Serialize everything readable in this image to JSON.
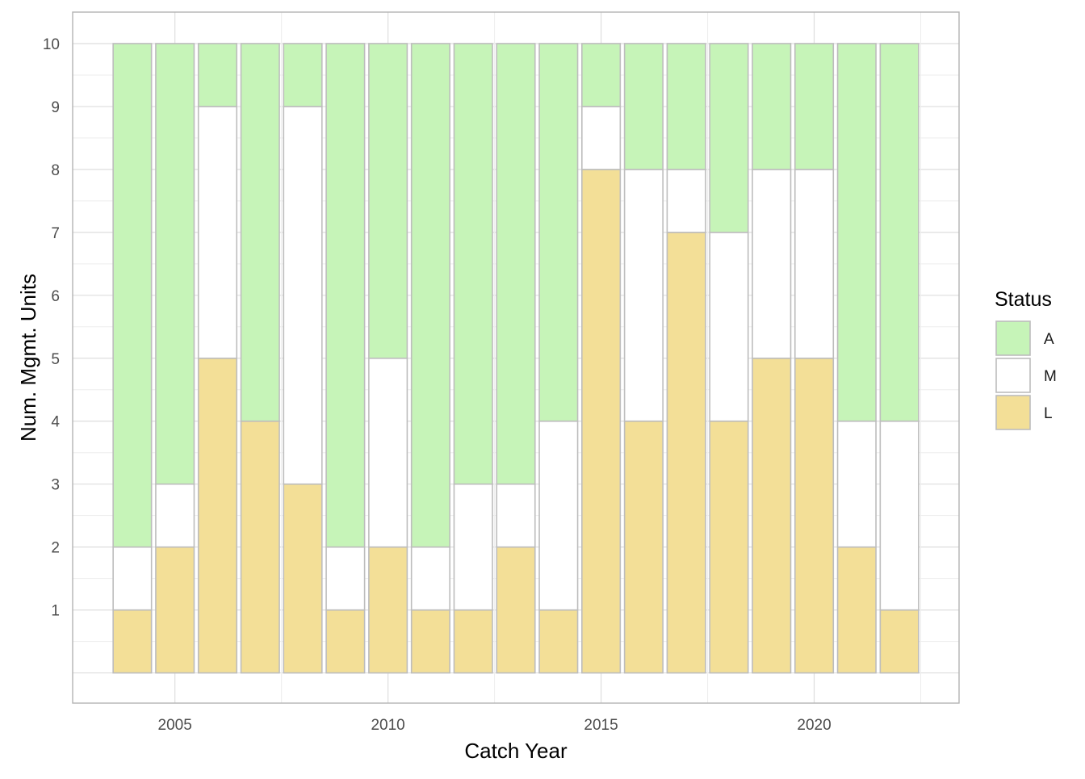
{
  "chart_data": {
    "type": "bar",
    "stacked": true,
    "xlabel": "Catch Year",
    "ylabel": "Num. Mgmt. Units",
    "categories": [
      2004,
      2005,
      2006,
      2007,
      2008,
      2009,
      2010,
      2011,
      2012,
      2013,
      2014,
      2015,
      2016,
      2017,
      2018,
      2019,
      2020,
      2021,
      2022
    ],
    "series": [
      {
        "name": "L",
        "color": "#f3df97",
        "values": [
          1,
          2,
          5,
          4,
          3,
          1,
          2,
          1,
          1,
          2,
          1,
          8,
          4,
          7,
          4,
          5,
          5,
          2,
          1
        ]
      },
      {
        "name": "M",
        "color": "#ffffff",
        "values": [
          1,
          1,
          4,
          0,
          6,
          1,
          3,
          1,
          2,
          1,
          3,
          1,
          4,
          1,
          3,
          3,
          3,
          2,
          3
        ]
      },
      {
        "name": "A",
        "color": "#c6f4b8",
        "values": [
          8,
          7,
          1,
          6,
          1,
          8,
          5,
          8,
          7,
          7,
          6,
          1,
          2,
          2,
          3,
          2,
          2,
          6,
          6
        ]
      }
    ],
    "xticks": [
      2005,
      2010,
      2015,
      2020
    ],
    "yticks": [
      1,
      2,
      3,
      4,
      5,
      6,
      7,
      8,
      9,
      10
    ],
    "xlim": [
      2002.6,
      2023.4
    ],
    "ylim": [
      -0.48,
      10.5
    ],
    "grid": true,
    "legend": {
      "title": "Status",
      "position": "right",
      "order": [
        "A",
        "M",
        "L"
      ]
    }
  }
}
